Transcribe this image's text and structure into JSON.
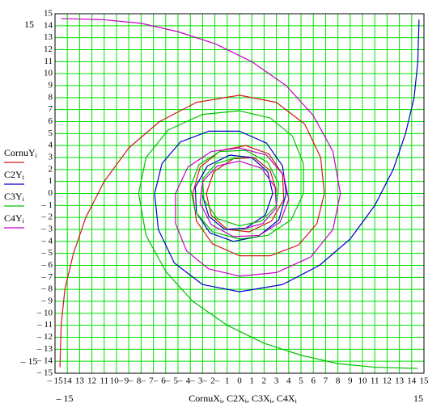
{
  "chart_data": {
    "type": "line",
    "x_label": [
      "CornuX",
      "i",
      ", C2X",
      "i",
      ", C3X",
      "i",
      ", C4X",
      "i"
    ],
    "xlim": [
      -15,
      15
    ],
    "ylim": [
      -15,
      15
    ],
    "xlim_labels": [
      "– 15",
      "15"
    ],
    "ylim_labels": [
      "– 15",
      "15"
    ],
    "xticks": [
      {
        "value": -15,
        "label": "– 15"
      },
      {
        "value": -14,
        "label": "14"
      },
      {
        "value": -13,
        "label": "13"
      },
      {
        "value": -12,
        "label": "12"
      },
      {
        "value": -11,
        "label": "11"
      },
      {
        "value": -10,
        "label": "10–"
      },
      {
        "value": -9,
        "label": "9–"
      },
      {
        "value": -8,
        "label": "8–"
      },
      {
        "value": -7,
        "label": "7–"
      },
      {
        "value": -6,
        "label": "6–"
      },
      {
        "value": -5,
        "label": "5–"
      },
      {
        "value": -4,
        "label": "4–"
      },
      {
        "value": -3,
        "label": "3–"
      },
      {
        "value": -2,
        "label": "2–"
      },
      {
        "value": -1,
        "label": "1"
      },
      0,
      1,
      2,
      3,
      4,
      5,
      6,
      7,
      8,
      9,
      10,
      11,
      12,
      13,
      14,
      15
    ],
    "yticks": [
      {
        "value": -15,
        "label": "– 15"
      },
      {
        "value": -14,
        "label": "– 14"
      },
      {
        "value": -13,
        "label": "– 13"
      },
      {
        "value": -12,
        "label": "– 12"
      },
      {
        "value": -11,
        "label": "– 11"
      },
      {
        "value": -10,
        "label": "– 10"
      },
      {
        "value": -9,
        "label": "– 9"
      },
      {
        "value": -8,
        "label": "– 8"
      },
      {
        "value": -7,
        "label": "– 7"
      },
      {
        "value": -6,
        "label": "– 6"
      },
      {
        "value": -5,
        "label": "– 5"
      },
      {
        "value": -4,
        "label": "– 4"
      },
      {
        "value": -3,
        "label": "– 3"
      },
      {
        "value": -2,
        "label": "– 2"
      },
      {
        "value": -1,
        "label": "– 1"
      },
      0,
      1,
      2,
      3,
      4,
      5,
      6,
      7,
      8,
      9,
      10,
      11,
      12,
      13,
      14,
      15
    ],
    "grid": true,
    "grid_color": "#00e000",
    "series": [
      {
        "name": "CornuY",
        "subscript": "i",
        "color": "#d01818",
        "x": [
          -14.6,
          -14.5,
          -14.2,
          -13.5,
          -12.5,
          -11,
          -9,
          -6.5,
          -3.5,
          0,
          3,
          5.3,
          6.6,
          6.9,
          6.3,
          4.8,
          2.5,
          0,
          -2.2,
          -3.5,
          -3.8,
          -3.2,
          -1.5,
          0.5,
          2.4,
          3.5,
          3.6,
          2.6,
          0.8,
          -1,
          -2.3,
          -2.7,
          -2.1,
          -0.5,
          1.2,
          2.5,
          3.0
        ],
        "y": [
          -14.5,
          -11,
          -8,
          -5,
          -2,
          1,
          3.8,
          6,
          7.6,
          8.2,
          7.6,
          5.8,
          3,
          0,
          -2.5,
          -4.3,
          -5.2,
          -5.2,
          -4.2,
          -2.3,
          0,
          2.2,
          3.6,
          4.0,
          3.3,
          1.6,
          -0.5,
          -2.3,
          -3.2,
          -3,
          -1.8,
          0,
          1.8,
          2.9,
          3,
          1.9,
          0.2
        ]
      },
      {
        "name": "C2Y",
        "subscript": "i",
        "color": "#0000c8",
        "x": [
          14.6,
          14.5,
          14.2,
          13.5,
          12.5,
          11,
          9,
          6.5,
          3.5,
          0,
          -3,
          -5.3,
          -6.6,
          -6.9,
          -6.3,
          -4.8,
          -2.5,
          0,
          2.2,
          3.5,
          3.8,
          3.2,
          1.5,
          -0.5,
          -2.4,
          -3.5,
          -3.6,
          -2.6,
          -0.8,
          1,
          2.3,
          2.7,
          2.1,
          0.5,
          -1.2,
          -2.5,
          -3.0
        ],
        "y": [
          14.5,
          11,
          8,
          5,
          2,
          -1,
          -3.8,
          -6,
          -7.6,
          -8.2,
          -7.6,
          -5.8,
          -3,
          0,
          2.5,
          4.3,
          5.2,
          5.2,
          4.2,
          2.3,
          0,
          -2.2,
          -3.6,
          -4.0,
          -3.3,
          -1.6,
          0.5,
          2.3,
          3.2,
          3,
          1.8,
          0,
          -1.8,
          -2.9,
          -3,
          -1.9,
          -0.2
        ]
      },
      {
        "name": "C3Y",
        "subscript": "i",
        "color": "#00c000",
        "x": [
          14.5,
          11,
          8,
          5,
          2,
          -1,
          -3.8,
          -6,
          -7.6,
          -8.2,
          -7.6,
          -5.8,
          -3,
          0,
          2.5,
          4.3,
          5.2,
          5.2,
          4.2,
          2.3,
          0,
          -2.2,
          -3.6,
          -4.0,
          -3.3,
          -1.6,
          0.5,
          2.3,
          3.2,
          3,
          1.8,
          0,
          -1.8,
          -2.9,
          -3,
          -1.9,
          -0.2
        ],
        "y": [
          -14.6,
          -14.5,
          -14.2,
          -13.5,
          -12.5,
          -11,
          -9,
          -6.5,
          -3.5,
          0,
          3,
          5.3,
          6.6,
          6.9,
          6.3,
          4.8,
          2.5,
          0,
          -2.2,
          -3.5,
          -3.8,
          -3.2,
          -1.5,
          0.5,
          2.4,
          3.5,
          3.6,
          2.6,
          0.8,
          -1,
          -2.3,
          -2.7,
          -2.1,
          -0.5,
          1.2,
          2.5,
          3.0
        ]
      },
      {
        "name": "C4Y",
        "subscript": "i",
        "color": "#c800c8",
        "x": [
          -14.5,
          -11,
          -8,
          -5,
          -2,
          1,
          3.8,
          6,
          7.6,
          8.2,
          7.6,
          5.8,
          3,
          0,
          -2.5,
          -4.3,
          -5.2,
          -5.2,
          -4.2,
          -2.3,
          0,
          2.2,
          3.6,
          4.0,
          3.3,
          1.6,
          -0.5,
          -2.3,
          -3.2,
          -3,
          -1.8,
          0,
          1.8,
          2.9,
          3,
          1.9,
          0.2
        ],
        "y": [
          14.6,
          14.5,
          14.2,
          13.5,
          12.5,
          11,
          9,
          6.5,
          3.5,
          0,
          -3,
          -5.3,
          -6.6,
          -6.9,
          -6.3,
          -4.8,
          -2.5,
          0,
          2.2,
          3.5,
          3.8,
          3.2,
          1.5,
          -0.5,
          -2.4,
          -3.5,
          -3.6,
          -2.6,
          -0.8,
          1,
          2.3,
          2.7,
          2.1,
          0.5,
          -1.2,
          -2.5,
          -3.0
        ]
      }
    ]
  }
}
